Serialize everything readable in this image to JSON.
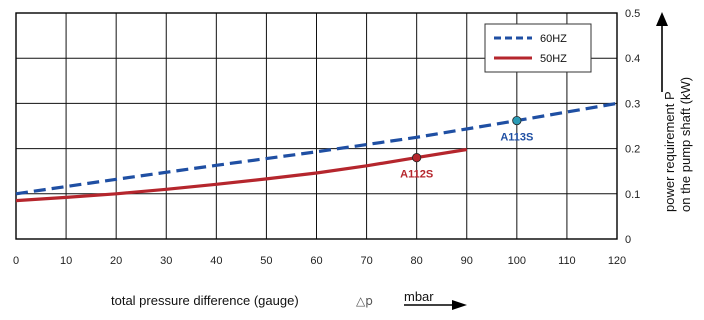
{
  "chart_data": {
    "type": "line",
    "xlabel": "total pressure difference (gauge)",
    "xlabel_symbol": "△p",
    "xunit": "mbar",
    "ylabel_line1": "power requirement P",
    "ylabel_line2": "on the pump shaft (kW)",
    "xlim": [
      0,
      120
    ],
    "ylim": [
      0,
      0.5
    ],
    "x_ticks": [
      "0",
      "10",
      "20",
      "30",
      "40",
      "50",
      "60",
      "70",
      "80",
      "90",
      "100",
      "110",
      "120"
    ],
    "y_ticks": [
      "0",
      "0.1",
      "0.2",
      "0.3",
      "0.4",
      "0.5"
    ],
    "grid": true,
    "legend_position": "top-right",
    "series": [
      {
        "name": "60HZ",
        "color": "#1f4fa3",
        "style": "dashed",
        "x": [
          0,
          20,
          40,
          60,
          80,
          100,
          120
        ],
        "y": [
          0.1,
          0.132,
          0.163,
          0.193,
          0.225,
          0.262,
          0.3
        ]
      },
      {
        "name": "50HZ",
        "color": "#b5262d",
        "style": "solid",
        "x": [
          0,
          10,
          20,
          30,
          40,
          50,
          60,
          70,
          80,
          90
        ],
        "y": [
          0.085,
          0.092,
          0.1,
          0.11,
          0.121,
          0.133,
          0.146,
          0.162,
          0.18,
          0.198
        ]
      }
    ],
    "points": [
      {
        "label": "A113S",
        "x": 100,
        "y": 0.262,
        "marker_color": "#2a9bb5",
        "label_color": "#1f4fa3"
      },
      {
        "label": "A112S",
        "x": 80,
        "y": 0.18,
        "marker_color": "#b5262d",
        "label_color": "#b5262d"
      }
    ]
  }
}
